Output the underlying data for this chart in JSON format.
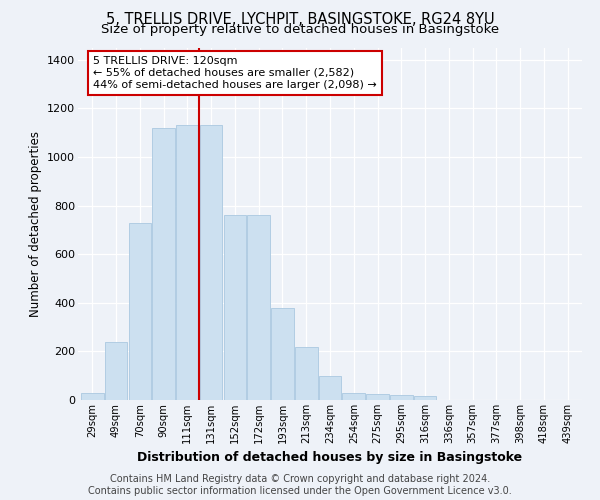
{
  "title_line1": "5, TRELLIS DRIVE, LYCHPIT, BASINGSTOKE, RG24 8YU",
  "title_line2": "Size of property relative to detached houses in Basingstoke",
  "xlabel": "Distribution of detached houses by size in Basingstoke",
  "ylabel": "Number of detached properties",
  "categories": [
    "29sqm",
    "49sqm",
    "70sqm",
    "90sqm",
    "111sqm",
    "131sqm",
    "152sqm",
    "172sqm",
    "193sqm",
    "213sqm",
    "234sqm",
    "254sqm",
    "275sqm",
    "295sqm",
    "316sqm",
    "336sqm",
    "357sqm",
    "377sqm",
    "398sqm",
    "418sqm",
    "439sqm"
  ],
  "values": [
    30,
    240,
    730,
    1120,
    1130,
    1130,
    760,
    760,
    380,
    220,
    100,
    30,
    25,
    20,
    15,
    0,
    0,
    0,
    0,
    0,
    0
  ],
  "bar_color": "#cce0f0",
  "bar_edgecolor": "#aac8e0",
  "vline_color": "#cc0000",
  "annotation_text": "5 TRELLIS DRIVE: 120sqm\n← 55% of detached houses are smaller (2,582)\n44% of semi-detached houses are larger (2,098) →",
  "annotation_box_color": "white",
  "annotation_box_edgecolor": "#cc0000",
  "ylim": [
    0,
    1450
  ],
  "yticks": [
    0,
    200,
    400,
    600,
    800,
    1000,
    1200,
    1400
  ],
  "background_color": "#eef2f8",
  "grid_color": "white",
  "footer_line1": "Contains HM Land Registry data © Crown copyright and database right 2024.",
  "footer_line2": "Contains public sector information licensed under the Open Government Licence v3.0.",
  "title_fontsize": 10.5,
  "subtitle_fontsize": 9.5,
  "footer_fontsize": 7.0,
  "vline_index": 5
}
